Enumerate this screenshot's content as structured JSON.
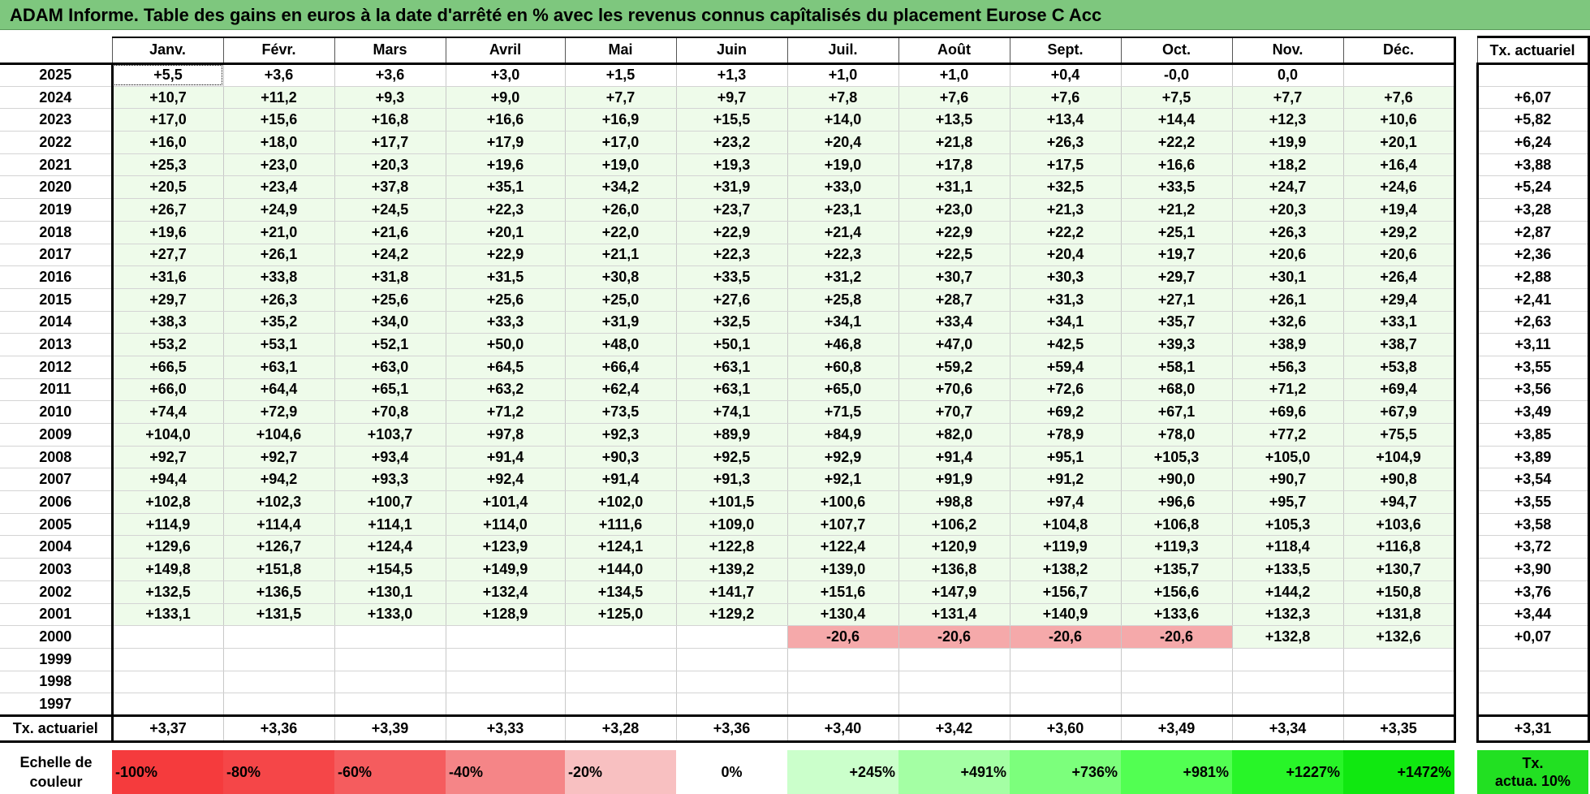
{
  "title": "ADAM Informe. Table des gains en euros à la date d'arrêté en % avec les revenus connus capîtalisés du placement Eurose C Acc",
  "headers": {
    "year": "",
    "months": [
      "Janv.",
      "Févr.",
      "Mars",
      "Avril",
      "Mai",
      "Juin",
      "Juil.",
      "Août",
      "Sept.",
      "Oct.",
      "Nov.",
      "Déc."
    ],
    "tx": "Tx. actuariel"
  },
  "rows": [
    {
      "year": "2025",
      "values": [
        "+5,5",
        "+3,6",
        "+3,6",
        "+3,0",
        "+1,5",
        "+1,3",
        "+1,0",
        "+1,0",
        "+0,4",
        "-0,0",
        "0,0",
        ""
      ],
      "tx": ""
    },
    {
      "year": "2024",
      "values": [
        "+10,7",
        "+11,2",
        "+9,3",
        "+9,0",
        "+7,7",
        "+9,7",
        "+7,8",
        "+7,6",
        "+7,6",
        "+7,5",
        "+7,7",
        "+7,6"
      ],
      "tx": "+6,07"
    },
    {
      "year": "2023",
      "values": [
        "+17,0",
        "+15,6",
        "+16,8",
        "+16,6",
        "+16,9",
        "+15,5",
        "+14,0",
        "+13,5",
        "+13,4",
        "+14,4",
        "+12,3",
        "+10,6"
      ],
      "tx": "+5,82"
    },
    {
      "year": "2022",
      "values": [
        "+16,0",
        "+18,0",
        "+17,7",
        "+17,9",
        "+17,0",
        "+23,2",
        "+20,4",
        "+21,8",
        "+26,3",
        "+22,2",
        "+19,9",
        "+20,1"
      ],
      "tx": "+6,24"
    },
    {
      "year": "2021",
      "values": [
        "+25,3",
        "+23,0",
        "+20,3",
        "+19,6",
        "+19,0",
        "+19,3",
        "+19,0",
        "+17,8",
        "+17,5",
        "+16,6",
        "+18,2",
        "+16,4"
      ],
      "tx": "+3,88"
    },
    {
      "year": "2020",
      "values": [
        "+20,5",
        "+23,4",
        "+37,8",
        "+35,1",
        "+34,2",
        "+31,9",
        "+33,0",
        "+31,1",
        "+32,5",
        "+33,5",
        "+24,7",
        "+24,6"
      ],
      "tx": "+5,24"
    },
    {
      "year": "2019",
      "values": [
        "+26,7",
        "+24,9",
        "+24,5",
        "+22,3",
        "+26,0",
        "+23,7",
        "+23,1",
        "+23,0",
        "+21,3",
        "+21,2",
        "+20,3",
        "+19,4"
      ],
      "tx": "+3,28"
    },
    {
      "year": "2018",
      "values": [
        "+19,6",
        "+21,0",
        "+21,6",
        "+20,1",
        "+22,0",
        "+22,9",
        "+21,4",
        "+22,9",
        "+22,2",
        "+25,1",
        "+26,3",
        "+29,2"
      ],
      "tx": "+2,87"
    },
    {
      "year": "2017",
      "values": [
        "+27,7",
        "+26,1",
        "+24,2",
        "+22,9",
        "+21,1",
        "+22,3",
        "+22,3",
        "+22,5",
        "+20,4",
        "+19,7",
        "+20,6",
        "+20,6"
      ],
      "tx": "+2,36"
    },
    {
      "year": "2016",
      "values": [
        "+31,6",
        "+33,8",
        "+31,8",
        "+31,5",
        "+30,8",
        "+33,5",
        "+31,2",
        "+30,7",
        "+30,3",
        "+29,7",
        "+30,1",
        "+26,4"
      ],
      "tx": "+2,88"
    },
    {
      "year": "2015",
      "values": [
        "+29,7",
        "+26,3",
        "+25,6",
        "+25,6",
        "+25,0",
        "+27,6",
        "+25,8",
        "+28,7",
        "+31,3",
        "+27,1",
        "+26,1",
        "+29,4"
      ],
      "tx": "+2,41"
    },
    {
      "year": "2014",
      "values": [
        "+38,3",
        "+35,2",
        "+34,0",
        "+33,3",
        "+31,9",
        "+32,5",
        "+34,1",
        "+33,4",
        "+34,1",
        "+35,7",
        "+32,6",
        "+33,1"
      ],
      "tx": "+2,63"
    },
    {
      "year": "2013",
      "values": [
        "+53,2",
        "+53,1",
        "+52,1",
        "+50,0",
        "+48,0",
        "+50,1",
        "+46,8",
        "+47,0",
        "+42,5",
        "+39,3",
        "+38,9",
        "+38,7"
      ],
      "tx": "+3,11"
    },
    {
      "year": "2012",
      "values": [
        "+66,5",
        "+63,1",
        "+63,0",
        "+64,5",
        "+66,4",
        "+63,1",
        "+60,8",
        "+59,2",
        "+59,4",
        "+58,1",
        "+56,3",
        "+53,8"
      ],
      "tx": "+3,55"
    },
    {
      "year": "2011",
      "values": [
        "+66,0",
        "+64,4",
        "+65,1",
        "+63,2",
        "+62,4",
        "+63,1",
        "+65,0",
        "+70,6",
        "+72,6",
        "+68,0",
        "+71,2",
        "+69,4"
      ],
      "tx": "+3,56"
    },
    {
      "year": "2010",
      "values": [
        "+74,4",
        "+72,9",
        "+70,8",
        "+71,2",
        "+73,5",
        "+74,1",
        "+71,5",
        "+70,7",
        "+69,2",
        "+67,1",
        "+69,6",
        "+67,9"
      ],
      "tx": "+3,49"
    },
    {
      "year": "2009",
      "values": [
        "+104,0",
        "+104,6",
        "+103,7",
        "+97,8",
        "+92,3",
        "+89,9",
        "+84,9",
        "+82,0",
        "+78,9",
        "+78,0",
        "+77,2",
        "+75,5"
      ],
      "tx": "+3,85"
    },
    {
      "year": "2008",
      "values": [
        "+92,7",
        "+92,7",
        "+93,4",
        "+91,4",
        "+90,3",
        "+92,5",
        "+92,9",
        "+91,4",
        "+95,1",
        "+105,3",
        "+105,0",
        "+104,9"
      ],
      "tx": "+3,89"
    },
    {
      "year": "2007",
      "values": [
        "+94,4",
        "+94,2",
        "+93,3",
        "+92,4",
        "+91,4",
        "+91,3",
        "+92,1",
        "+91,9",
        "+91,2",
        "+90,0",
        "+90,7",
        "+90,8"
      ],
      "tx": "+3,54"
    },
    {
      "year": "2006",
      "values": [
        "+102,8",
        "+102,3",
        "+100,7",
        "+101,4",
        "+102,0",
        "+101,5",
        "+100,6",
        "+98,8",
        "+97,4",
        "+96,6",
        "+95,7",
        "+94,7"
      ],
      "tx": "+3,55"
    },
    {
      "year": "2005",
      "values": [
        "+114,9",
        "+114,4",
        "+114,1",
        "+114,0",
        "+111,6",
        "+109,0",
        "+107,7",
        "+106,2",
        "+104,8",
        "+106,8",
        "+105,3",
        "+103,6"
      ],
      "tx": "+3,58"
    },
    {
      "year": "2004",
      "values": [
        "+129,6",
        "+126,7",
        "+124,4",
        "+123,9",
        "+124,1",
        "+122,8",
        "+122,4",
        "+120,9",
        "+119,9",
        "+119,3",
        "+118,4",
        "+116,8"
      ],
      "tx": "+3,72"
    },
    {
      "year": "2003",
      "values": [
        "+149,8",
        "+151,8",
        "+154,5",
        "+149,9",
        "+144,0",
        "+139,2",
        "+139,0",
        "+136,8",
        "+138,2",
        "+135,7",
        "+133,5",
        "+130,7"
      ],
      "tx": "+3,90"
    },
    {
      "year": "2002",
      "values": [
        "+132,5",
        "+136,5",
        "+130,1",
        "+132,4",
        "+134,5",
        "+141,7",
        "+151,6",
        "+147,9",
        "+156,7",
        "+156,6",
        "+144,2",
        "+150,8"
      ],
      "tx": "+3,76"
    },
    {
      "year": "2001",
      "values": [
        "+133,1",
        "+131,5",
        "+133,0",
        "+128,9",
        "+125,0",
        "+129,2",
        "+130,4",
        "+131,4",
        "+140,9",
        "+133,6",
        "+132,3",
        "+131,8"
      ],
      "tx": "+3,44"
    },
    {
      "year": "2000",
      "values": [
        "",
        "",
        "",
        "",
        "",
        "",
        "-20,6",
        "-20,6",
        "-20,6",
        "-20,6",
        "+132,8",
        "+132,6"
      ],
      "tx": "+0,07"
    },
    {
      "year": "1999",
      "values": [
        "",
        "",
        "",
        "",
        "",
        "",
        "",
        "",
        "",
        "",
        "",
        ""
      ],
      "tx": ""
    },
    {
      "year": "1998",
      "values": [
        "",
        "",
        "",
        "",
        "",
        "",
        "",
        "",
        "",
        "",
        "",
        ""
      ],
      "tx": ""
    },
    {
      "year": "1997",
      "values": [
        "",
        "",
        "",
        "",
        "",
        "",
        "",
        "",
        "",
        "",
        "",
        ""
      ],
      "tx": ""
    }
  ],
  "footer": {
    "label": "Tx. actuariel",
    "values": [
      "+3,37",
      "+3,36",
      "+3,39",
      "+3,33",
      "+3,28",
      "+3,36",
      "+3,40",
      "+3,42",
      "+3,60",
      "+3,49",
      "+3,34",
      "+3,35"
    ],
    "tx": "+3,31"
  },
  "legend": {
    "label_line1": "Echelle de",
    "label_line2": "couleur",
    "items": [
      {
        "label": "-100%",
        "color": "#f53b3d",
        "kind": "neg"
      },
      {
        "label": "-80%",
        "color": "#f54648",
        "kind": "neg"
      },
      {
        "label": "-60%",
        "color": "#f55c5e",
        "kind": "neg"
      },
      {
        "label": "-40%",
        "color": "#f58587",
        "kind": "neg"
      },
      {
        "label": "-20%",
        "color": "#f8c0c1",
        "kind": "neg"
      },
      {
        "label": "0%",
        "color": "#ffffff",
        "kind": "zero"
      },
      {
        "label": "+245%",
        "color": "#cbffcb",
        "kind": "pos"
      },
      {
        "label": "+491%",
        "color": "#a4ffa4",
        "kind": "pos"
      },
      {
        "label": "+736%",
        "color": "#7cff7c",
        "kind": "pos"
      },
      {
        "label": "+981%",
        "color": "#52ff52",
        "kind": "pos"
      },
      {
        "label": "+1227%",
        "color": "#28f528",
        "kind": "pos"
      },
      {
        "label": "+1472%",
        "color": "#10e810",
        "kind": "pos"
      }
    ],
    "tx_line1": "Tx.",
    "tx_line2": "actua. 10%",
    "tx_color": "#22e022"
  },
  "colors": {
    "title_bg": "#7ec77e",
    "positive_cell": "#eefbea",
    "negative_cell": "#f5a9aa"
  }
}
